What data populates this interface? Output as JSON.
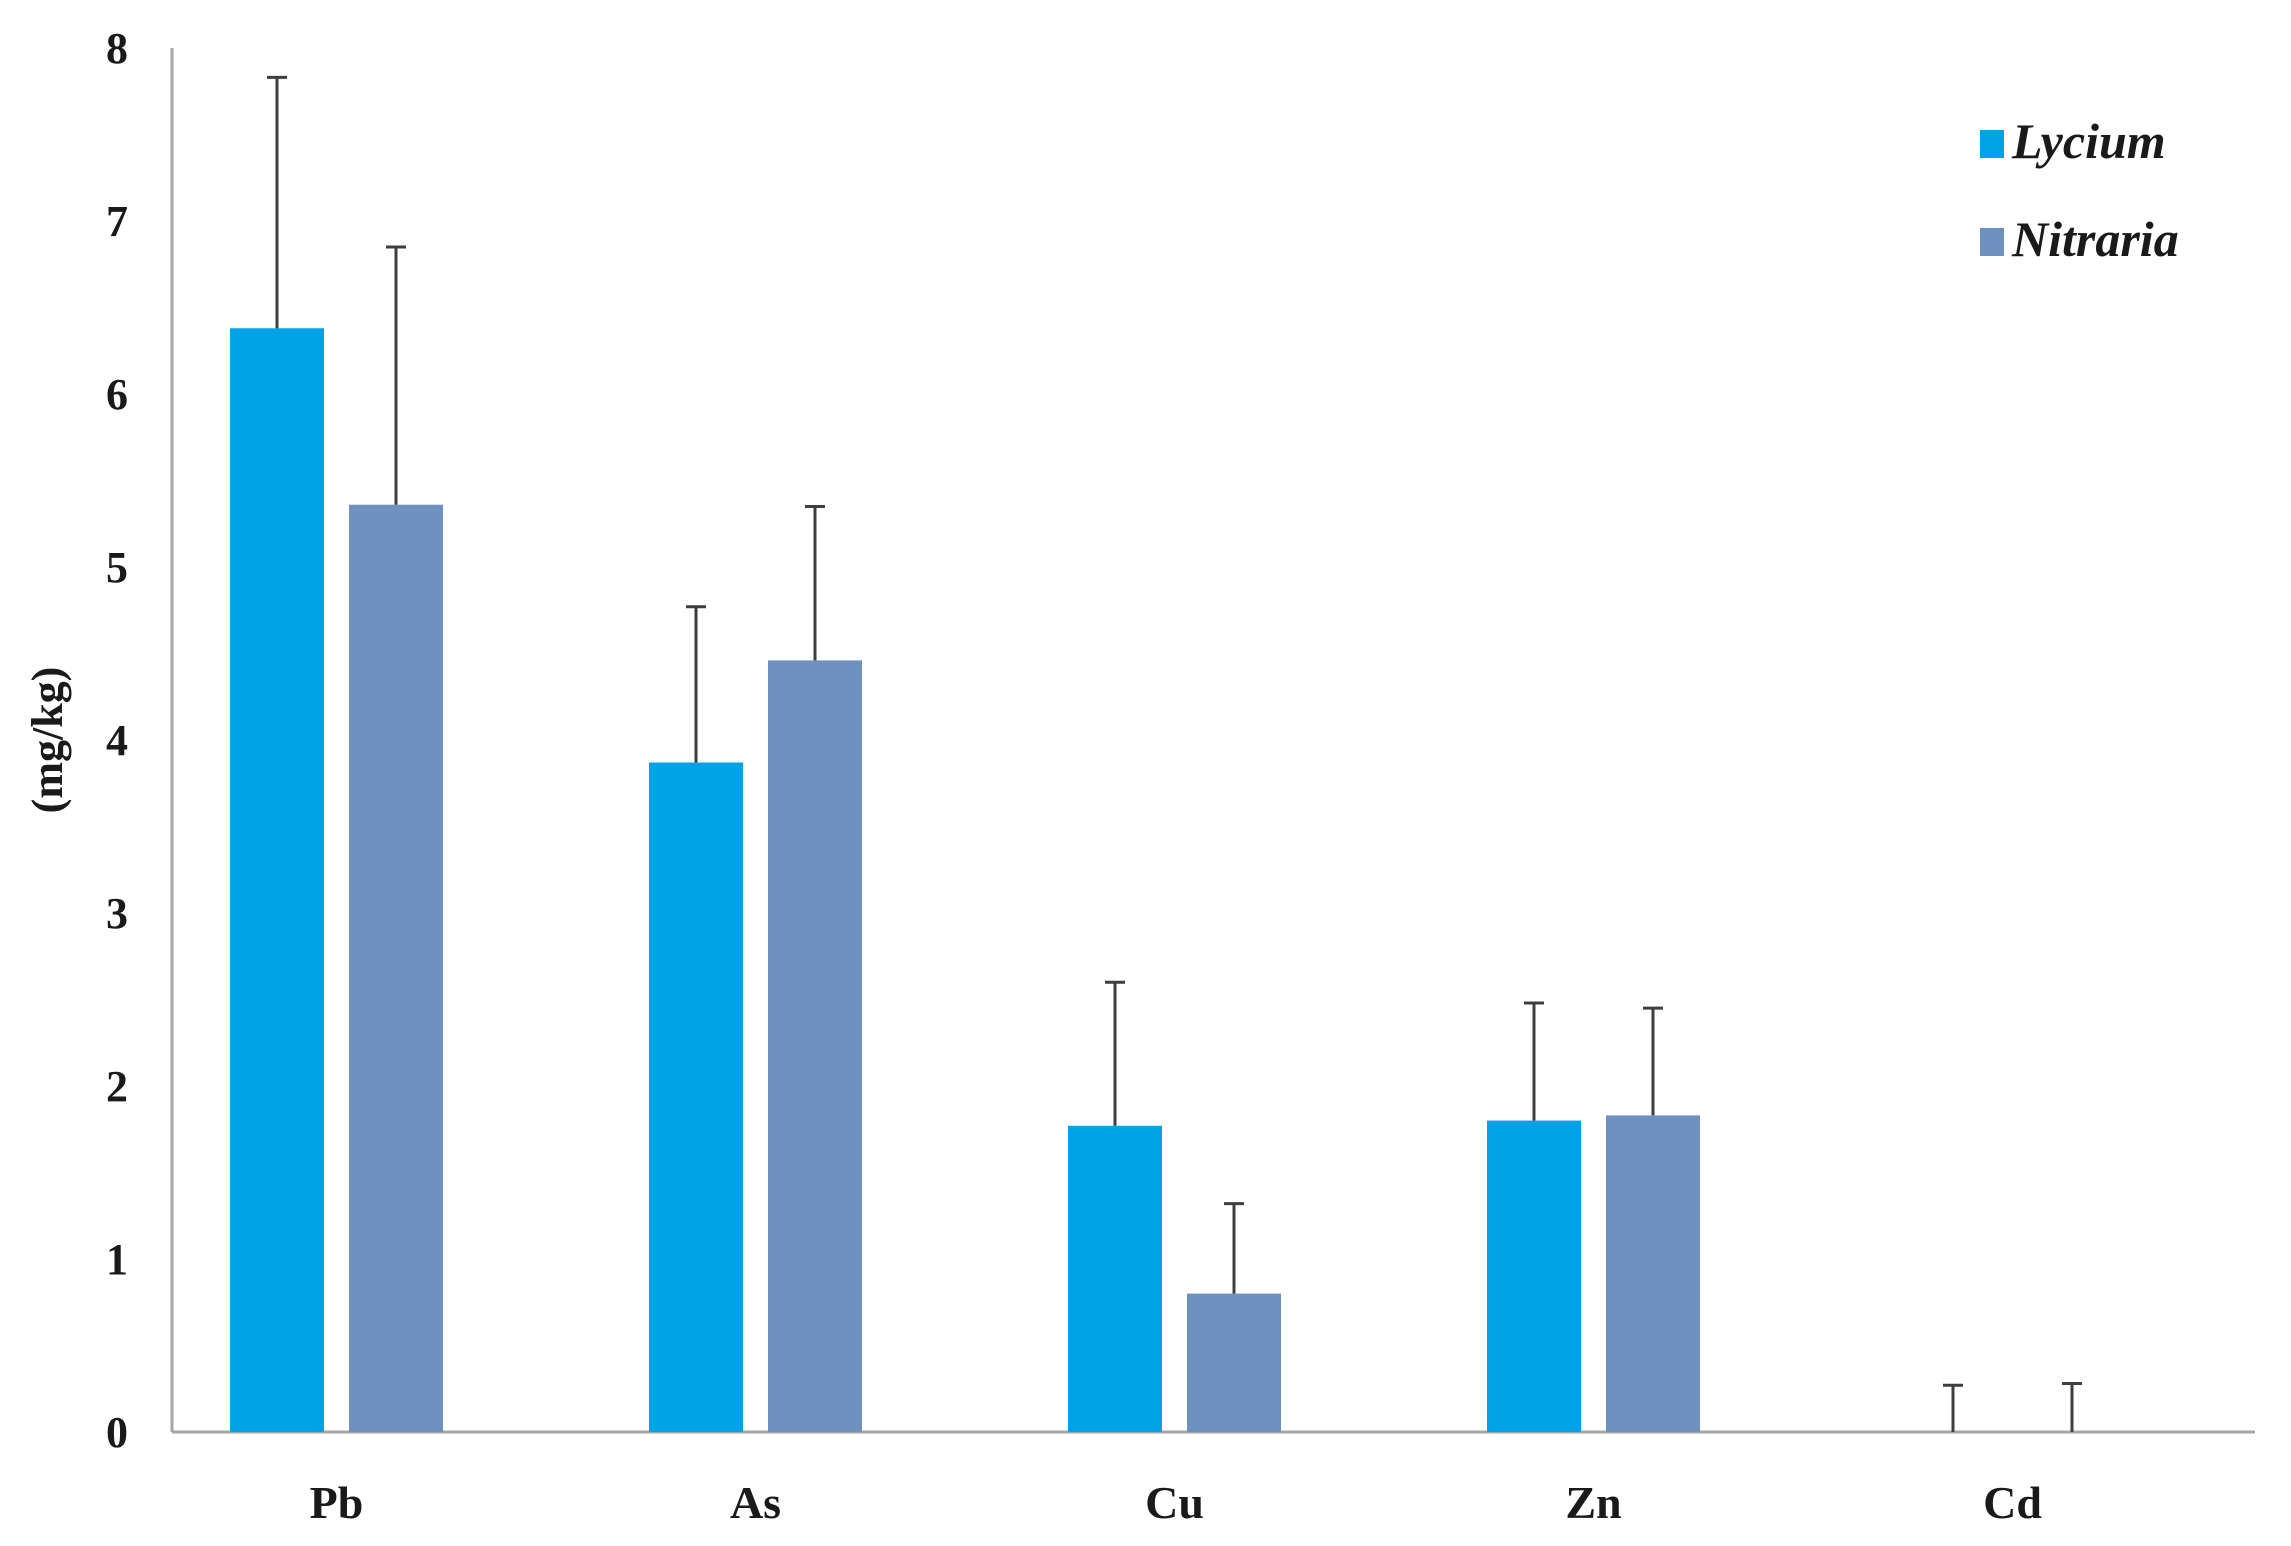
{
  "chart_data": {
    "type": "bar",
    "title": "",
    "xlabel": "",
    "ylabel": "(mg/kg)",
    "ylim": [
      0,
      8
    ],
    "yticks": [
      0,
      1,
      2,
      3,
      4,
      5,
      6,
      7,
      8
    ],
    "yticks_text": [
      "0",
      "1",
      "2",
      "3",
      "4",
      "5",
      "6",
      "7",
      "8"
    ],
    "categories": [
      "Pb",
      "As",
      "Cu",
      "Zn",
      "Cd"
    ],
    "series": [
      {
        "name": "Lycium",
        "color": "#00a2e8",
        "values": [
          6.38,
          3.87,
          1.77,
          1.8,
          0.0
        ],
        "errors": [
          1.45,
          0.9,
          0.83,
          0.68,
          0.27
        ]
      },
      {
        "name": "Nitraria",
        "color": "#6e91bf",
        "values": [
          5.36,
          4.46,
          0.8,
          1.83,
          0.0
        ],
        "errors": [
          1.49,
          0.89,
          0.52,
          0.62,
          0.28
        ]
      }
    ],
    "legend_position": "top-right",
    "grid": false
  }
}
